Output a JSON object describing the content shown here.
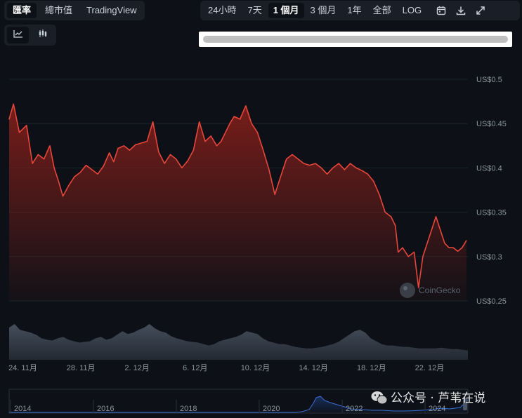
{
  "left_tabs": [
    {
      "label": "匯率",
      "active": true
    },
    {
      "label": "總市值",
      "active": false
    },
    {
      "label": "TradingView",
      "active": false
    }
  ],
  "range_tabs": [
    {
      "label": "24小時",
      "active": false
    },
    {
      "label": "7天",
      "active": false
    },
    {
      "label": "1 個月",
      "active": true
    },
    {
      "label": "3 個月",
      "active": false
    },
    {
      "label": "1年",
      "active": false
    },
    {
      "label": "全部",
      "active": false
    },
    {
      "label": "LOG",
      "active": false
    }
  ],
  "tool_icons": [
    "calendar-icon",
    "download-icon",
    "expand-icon"
  ],
  "chart_type_buttons": [
    {
      "icon": "line-chart-icon",
      "active": true
    },
    {
      "icon": "candlestick-icon",
      "active": false
    }
  ],
  "watermark": "CoinGecko",
  "overlay_text": "公众号 · 芦苇在说",
  "colors": {
    "line": "#e8463b",
    "area_top": "#8a1f1a",
    "volume": "#4b5563",
    "nav_line": "#3b6fd6",
    "background": "#0d1117"
  },
  "chart_data": {
    "type": "line",
    "ylim": [
      0.25,
      0.5
    ],
    "y_ticks": [
      {
        "v": 0.5,
        "label": "US$0.5"
      },
      {
        "v": 0.45,
        "label": "US$0.45"
      },
      {
        "v": 0.4,
        "label": "US$0.4"
      },
      {
        "v": 0.35,
        "label": "US$0.35"
      },
      {
        "v": 0.3,
        "label": "US$0.3"
      },
      {
        "v": 0.25,
        "label": "US$0.25"
      }
    ],
    "x_ticks": [
      "24. 11月",
      "28. 11月",
      "2. 12月",
      "6. 12月",
      "10. 12月",
      "14. 12月",
      "18. 12月",
      "22. 12月"
    ],
    "x_range": [
      23.9,
      55.5
    ],
    "x_tick_days": [
      24,
      28,
      32,
      36,
      40,
      44,
      48,
      52
    ],
    "series": [
      {
        "x": [
          23.9,
          24.2,
          24.6,
          25.1,
          25.5,
          25.9,
          26.3,
          26.7,
          27.0,
          27.3,
          27.6,
          28.0,
          28.4,
          28.8,
          29.2,
          29.6,
          30.0,
          30.4,
          30.8,
          31.1,
          31.4,
          31.8,
          32.2,
          32.6,
          33.0,
          33.4,
          33.8,
          34.2,
          34.6,
          35.0,
          35.4,
          35.8,
          36.2,
          36.6,
          37.0,
          37.4,
          37.8,
          38.2,
          38.5,
          38.8,
          39.1,
          39.4,
          39.8,
          40.2,
          40.6,
          41.0,
          41.4,
          41.8,
          42.2,
          42.6,
          43.0,
          43.4,
          43.8,
          44.2,
          44.6,
          45.0,
          45.4,
          45.8,
          46.2,
          46.6,
          47.0,
          47.4,
          47.8,
          48.2,
          48.6,
          49.0,
          49.4,
          49.8,
          50.2,
          50.5,
          50.7,
          51.0,
          51.4,
          51.8,
          52.1,
          52.4,
          52.7,
          53.0,
          53.3,
          53.6,
          53.9,
          54.2,
          54.5,
          54.8,
          55.1,
          55.4
        ],
        "y": [
          0.455,
          0.472,
          0.44,
          0.448,
          0.405,
          0.415,
          0.41,
          0.425,
          0.4,
          0.385,
          0.368,
          0.38,
          0.39,
          0.395,
          0.403,
          0.398,
          0.393,
          0.402,
          0.417,
          0.407,
          0.422,
          0.425,
          0.42,
          0.426,
          0.428,
          0.43,
          0.452,
          0.418,
          0.405,
          0.415,
          0.41,
          0.4,
          0.408,
          0.42,
          0.452,
          0.43,
          0.436,
          0.425,
          0.43,
          0.44,
          0.45,
          0.458,
          0.455,
          0.47,
          0.45,
          0.44,
          0.42,
          0.398,
          0.37,
          0.39,
          0.41,
          0.415,
          0.41,
          0.405,
          0.403,
          0.405,
          0.4,
          0.393,
          0.4,
          0.405,
          0.398,
          0.405,
          0.4,
          0.397,
          0.393,
          0.385,
          0.37,
          0.35,
          0.345,
          0.335,
          0.305,
          0.31,
          0.3,
          0.305,
          0.265,
          0.3,
          0.315,
          0.33,
          0.345,
          0.33,
          0.315,
          0.31,
          0.31,
          0.306,
          0.31,
          0.318
        ]
      }
    ],
    "volume": [
      0.45,
      0.5,
      0.42,
      0.4,
      0.38,
      0.35,
      0.3,
      0.28,
      0.27,
      0.3,
      0.32,
      0.28,
      0.26,
      0.24,
      0.25,
      0.26,
      0.3,
      0.32,
      0.28,
      0.3,
      0.35,
      0.4,
      0.36,
      0.38,
      0.42,
      0.45,
      0.5,
      0.44,
      0.4,
      0.38,
      0.33,
      0.3,
      0.28,
      0.26,
      0.25,
      0.24,
      0.22,
      0.2,
      0.22,
      0.26,
      0.28,
      0.3,
      0.32,
      0.35,
      0.4,
      0.38,
      0.36,
      0.3,
      0.26,
      0.24,
      0.22,
      0.22,
      0.2,
      0.18,
      0.17,
      0.16,
      0.16,
      0.17,
      0.18,
      0.2,
      0.22,
      0.25,
      0.3,
      0.35,
      0.4,
      0.42,
      0.38,
      0.3,
      0.26,
      0.22,
      0.2,
      0.2,
      0.19,
      0.18,
      0.18,
      0.17,
      0.16,
      0.16,
      0.16,
      0.16,
      0.17,
      0.16,
      0.15,
      0.15,
      0.14,
      0.13
    ],
    "navigator": {
      "x_ticks": [
        "2014",
        "2016",
        "2018",
        "2020",
        "2022",
        "2024"
      ]
    }
  }
}
